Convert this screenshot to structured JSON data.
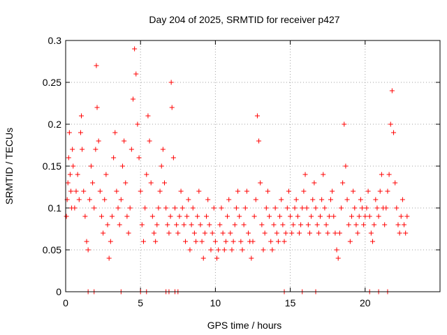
{
  "chart_data": {
    "type": "scatter",
    "title": "Day 204 of 2025, SRMTID for receiver p427",
    "xlabel": "GPS time / hours",
    "ylabel": "SRMTID / TECUs",
    "xlim": [
      0,
      25
    ],
    "ylim": [
      0,
      0.3
    ],
    "xticks": [
      0,
      5,
      10,
      15,
      20
    ],
    "xtick_labels": [
      "0",
      "5",
      "10",
      "15",
      "20"
    ],
    "yticks": [
      0,
      0.05,
      0.1,
      0.15,
      0.2,
      0.25,
      0.3
    ],
    "ytick_labels": [
      "0",
      "0.05",
      "0.1",
      "0.15",
      "0.2",
      "0.25",
      "0.3"
    ],
    "grid": true,
    "marker": "plus",
    "color": "#ff0000",
    "series": [
      {
        "name": "SRMTID",
        "points": [
          [
            0.05,
            0.09
          ],
          [
            0.1,
            0.11
          ],
          [
            0.15,
            0.13
          ],
          [
            0.2,
            0.16
          ],
          [
            0.25,
            0.19
          ],
          [
            0.3,
            0.14
          ],
          [
            0.35,
            0.12
          ],
          [
            0.4,
            0.1
          ],
          [
            0.45,
            0.17
          ],
          [
            0.5,
            0.15
          ],
          [
            0.6,
            0.1
          ],
          [
            0.7,
            0.12
          ],
          [
            0.8,
            0.14
          ],
          [
            0.9,
            0.11
          ],
          [
            1.0,
            0.19
          ],
          [
            1.05,
            0.21
          ],
          [
            1.1,
            0.17
          ],
          [
            1.2,
            0.12
          ],
          [
            1.3,
            0.09
          ],
          [
            1.4,
            0.06
          ],
          [
            1.5,
            0.05
          ],
          [
            1.6,
            0.11
          ],
          [
            1.7,
            0.15
          ],
          [
            1.8,
            0.13
          ],
          [
            1.9,
            0.1
          ],
          [
            2.0,
            0.17
          ],
          [
            2.05,
            0.27
          ],
          [
            2.1,
            0.22
          ],
          [
            2.2,
            0.18
          ],
          [
            2.3,
            0.12
          ],
          [
            2.4,
            0.09
          ],
          [
            2.5,
            0.07
          ],
          [
            2.6,
            0.11
          ],
          [
            2.7,
            0.14
          ],
          [
            2.8,
            0.08
          ],
          [
            2.9,
            0.04
          ],
          [
            3.0,
            0.06
          ],
          [
            3.1,
            0.09
          ],
          [
            3.2,
            0.16
          ],
          [
            3.3,
            0.19
          ],
          [
            3.4,
            0.12
          ],
          [
            3.5,
            0.1
          ],
          [
            3.6,
            0.08
          ],
          [
            3.7,
            0.11
          ],
          [
            3.8,
            0.15
          ],
          [
            3.9,
            0.18
          ],
          [
            4.0,
            0.13
          ],
          [
            4.1,
            0.09
          ],
          [
            4.2,
            0.07
          ],
          [
            4.3,
            0.1
          ],
          [
            4.4,
            0.17
          ],
          [
            4.5,
            0.23
          ],
          [
            4.6,
            0.29
          ],
          [
            4.7,
            0.26
          ],
          [
            4.8,
            0.2
          ],
          [
            4.9,
            0.16
          ],
          [
            5.0,
            0.12
          ],
          [
            5.1,
            0.08
          ],
          [
            5.2,
            0.06
          ],
          [
            5.3,
            0.1
          ],
          [
            5.4,
            0.14
          ],
          [
            5.5,
            0.21
          ],
          [
            5.6,
            0.18
          ],
          [
            5.7,
            0.13
          ],
          [
            5.8,
            0.09
          ],
          [
            5.9,
            0.07
          ],
          [
            6.0,
            0.06
          ],
          [
            6.1,
            0.08
          ],
          [
            6.2,
            0.1
          ],
          [
            6.3,
            0.12
          ],
          [
            6.4,
            0.15
          ],
          [
            6.5,
            0.17
          ],
          [
            6.6,
            0.13
          ],
          [
            6.7,
            0.1
          ],
          [
            6.8,
            0.08
          ],
          [
            6.9,
            0.07
          ],
          [
            7.0,
            0.09
          ],
          [
            7.05,
            0.25
          ],
          [
            7.1,
            0.22
          ],
          [
            7.2,
            0.16
          ],
          [
            7.3,
            0.1
          ],
          [
            7.4,
            0.08
          ],
          [
            7.5,
            0.07
          ],
          [
            7.6,
            0.09
          ],
          [
            7.7,
            0.12
          ],
          [
            7.8,
            0.1
          ],
          [
            7.9,
            0.08
          ],
          [
            8.0,
            0.06
          ],
          [
            8.1,
            0.09
          ],
          [
            8.2,
            0.11
          ],
          [
            8.3,
            0.05
          ],
          [
            8.4,
            0.08
          ],
          [
            8.5,
            0.1
          ],
          [
            8.6,
            0.07
          ],
          [
            8.7,
            0.06
          ],
          [
            8.8,
            0.09
          ],
          [
            8.9,
            0.12
          ],
          [
            9.0,
            0.08
          ],
          [
            9.1,
            0.06
          ],
          [
            9.2,
            0.04
          ],
          [
            9.3,
            0.07
          ],
          [
            9.4,
            0.09
          ],
          [
            9.5,
            0.11
          ],
          [
            9.6,
            0.08
          ],
          [
            9.7,
            0.05
          ],
          [
            9.8,
            0.07
          ],
          [
            9.9,
            0.1
          ],
          [
            10.0,
            0.06
          ],
          [
            10.1,
            0.04
          ],
          [
            10.2,
            0.05
          ],
          [
            10.3,
            0.08
          ],
          [
            10.4,
            0.1
          ],
          [
            10.5,
            0.07
          ],
          [
            10.6,
            0.05
          ],
          [
            10.7,
            0.06
          ],
          [
            10.8,
            0.09
          ],
          [
            10.9,
            0.11
          ],
          [
            11.0,
            0.07
          ],
          [
            11.1,
            0.05
          ],
          [
            11.2,
            0.06
          ],
          [
            11.3,
            0.08
          ],
          [
            11.4,
            0.1
          ],
          [
            11.5,
            0.12
          ],
          [
            11.6,
            0.09
          ],
          [
            11.7,
            0.06
          ],
          [
            11.8,
            0.05
          ],
          [
            11.9,
            0.08
          ],
          [
            12.0,
            0.1
          ],
          [
            12.1,
            0.12
          ],
          [
            12.2,
            0.07
          ],
          [
            12.3,
            0.06
          ],
          [
            12.4,
            0.04
          ],
          [
            12.5,
            0.06
          ],
          [
            12.6,
            0.09
          ],
          [
            12.7,
            0.11
          ],
          [
            12.8,
            0.21
          ],
          [
            12.9,
            0.18
          ],
          [
            13.0,
            0.13
          ],
          [
            13.1,
            0.08
          ],
          [
            13.2,
            0.05
          ],
          [
            13.3,
            0.07
          ],
          [
            13.4,
            0.1
          ],
          [
            13.5,
            0.12
          ],
          [
            13.6,
            0.09
          ],
          [
            13.7,
            0.06
          ],
          [
            13.8,
            0.05
          ],
          [
            13.9,
            0.08
          ],
          [
            14.0,
            0.1
          ],
          [
            14.1,
            0.07
          ],
          [
            14.2,
            0.06
          ],
          [
            14.3,
            0.09
          ],
          [
            14.4,
            0.11
          ],
          [
            14.5,
            0.08
          ],
          [
            14.6,
            0.06
          ],
          [
            14.7,
            0.07
          ],
          [
            14.8,
            0.1
          ],
          [
            14.9,
            0.12
          ],
          [
            15.0,
            0.09
          ],
          [
            15.1,
            0.07
          ],
          [
            15.2,
            0.08
          ],
          [
            15.3,
            0.1
          ],
          [
            15.4,
            0.11
          ],
          [
            15.5,
            0.09
          ],
          [
            15.6,
            0.07
          ],
          [
            15.7,
            0.08
          ],
          [
            15.8,
            0.1
          ],
          [
            15.9,
            0.12
          ],
          [
            16.0,
            0.14
          ],
          [
            16.1,
            0.1
          ],
          [
            16.2,
            0.08
          ],
          [
            16.3,
            0.07
          ],
          [
            16.4,
            0.09
          ],
          [
            16.5,
            0.11
          ],
          [
            16.6,
            0.13
          ],
          [
            16.7,
            0.1
          ],
          [
            16.8,
            0.08
          ],
          [
            16.9,
            0.07
          ],
          [
            17.0,
            0.09
          ],
          [
            17.1,
            0.11
          ],
          [
            17.2,
            0.14
          ],
          [
            17.3,
            0.1
          ],
          [
            17.4,
            0.08
          ],
          [
            17.5,
            0.07
          ],
          [
            17.6,
            0.09
          ],
          [
            17.7,
            0.11
          ],
          [
            17.8,
            0.12
          ],
          [
            17.9,
            0.09
          ],
          [
            18.0,
            0.07
          ],
          [
            18.1,
            0.05
          ],
          [
            18.2,
            0.04
          ],
          [
            18.3,
            0.07
          ],
          [
            18.4,
            0.1
          ],
          [
            18.5,
            0.13
          ],
          [
            18.6,
            0.2
          ],
          [
            18.7,
            0.15
          ],
          [
            18.8,
            0.11
          ],
          [
            18.9,
            0.08
          ],
          [
            19.0,
            0.06
          ],
          [
            19.1,
            0.09
          ],
          [
            19.2,
            0.12
          ],
          [
            19.3,
            0.1
          ],
          [
            19.4,
            0.08
          ],
          [
            19.5,
            0.07
          ],
          [
            19.6,
            0.09
          ],
          [
            19.7,
            0.11
          ],
          [
            19.8,
            0.1
          ],
          [
            19.9,
            0.08
          ],
          [
            20.0,
            0.09
          ],
          [
            20.1,
            0.1
          ],
          [
            20.2,
            0.12
          ],
          [
            20.3,
            0.09
          ],
          [
            20.4,
            0.07
          ],
          [
            20.5,
            0.06
          ],
          [
            20.6,
            0.08
          ],
          [
            20.7,
            0.11
          ],
          [
            20.8,
            0.1
          ],
          [
            20.9,
            0.09
          ],
          [
            21.0,
            0.12
          ],
          [
            21.1,
            0.14
          ],
          [
            21.2,
            0.1
          ],
          [
            21.3,
            0.08
          ],
          [
            21.4,
            0.1
          ],
          [
            21.5,
            0.12
          ],
          [
            21.6,
            0.14
          ],
          [
            21.7,
            0.2
          ],
          [
            21.8,
            0.24
          ],
          [
            21.9,
            0.19
          ],
          [
            22.0,
            0.13
          ],
          [
            22.1,
            0.1
          ],
          [
            22.2,
            0.08
          ],
          [
            22.3,
            0.07
          ],
          [
            22.4,
            0.09
          ],
          [
            22.5,
            0.11
          ],
          [
            22.6,
            0.08
          ],
          [
            22.7,
            0.07
          ],
          [
            22.8,
            0.09
          ]
        ]
      }
    ],
    "zero_markers_x": [
      1.5,
      1.9,
      3.7,
      5.0,
      5.4,
      6.7,
      6.9,
      7.3,
      7.5,
      14.6,
      15.8,
      16.7,
      20.3,
      20.9,
      21.5
    ]
  }
}
